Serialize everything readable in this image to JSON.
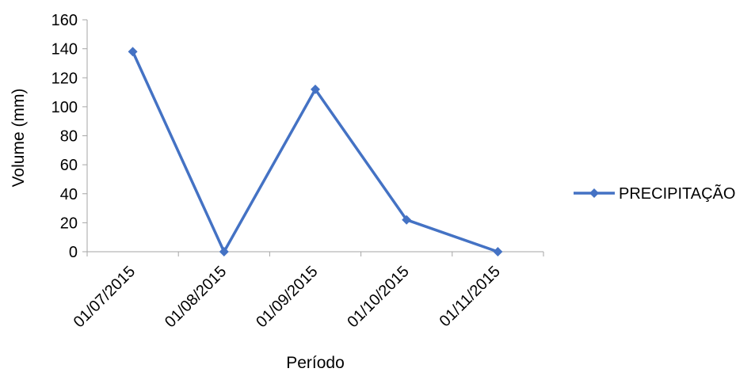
{
  "chart_data": {
    "type": "line",
    "title": "",
    "xlabel": "Período",
    "ylabel": "Volume (mm)",
    "categories": [
      "01/07/2015",
      "01/08/2015",
      "01/09/2015",
      "01/10/2015",
      "01/11/2015"
    ],
    "series": [
      {
        "name": "PRECIPITAÇÃO",
        "values": [
          138,
          0,
          112,
          22,
          0
        ],
        "color": "#4472C4",
        "marker": "diamond"
      }
    ],
    "ylim": [
      0,
      160
    ],
    "yticks": [
      0,
      20,
      40,
      60,
      80,
      100,
      120,
      140,
      160
    ],
    "grid": false,
    "legend_position": "right"
  }
}
